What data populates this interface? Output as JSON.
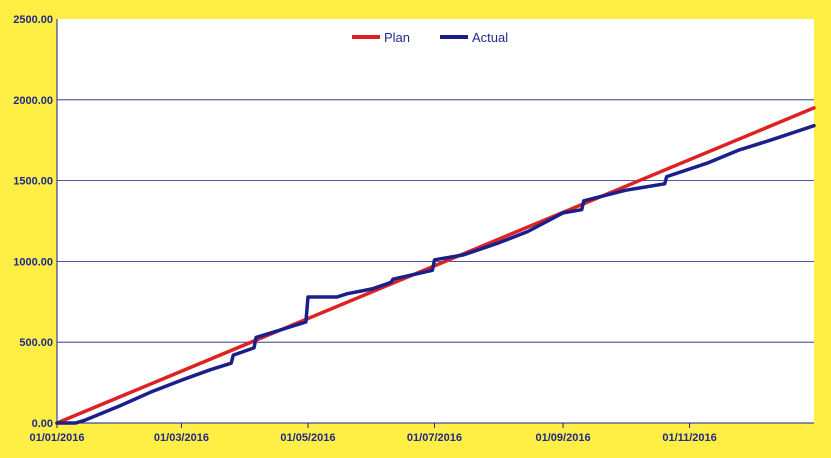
{
  "chart_data": {
    "type": "line",
    "title": "",
    "xlabel": "",
    "ylabel": "",
    "x_range": [
      "2016-01-01",
      "2016-12-31"
    ],
    "ylim": [
      0,
      2500
    ],
    "grid": {
      "horizontal": true,
      "vertical": false
    },
    "legend_position": "top-center",
    "y_ticks": [
      "0.00",
      "500.00",
      "1000.00",
      "1500.00",
      "2000.00",
      "2500.00"
    ],
    "x_ticks": [
      {
        "date": "2016-01-01",
        "label": "01/01/2016"
      },
      {
        "date": "2016-03-01",
        "label": "01/03/2016"
      },
      {
        "date": "2016-05-01",
        "label": "01/05/2016"
      },
      {
        "date": "2016-07-01",
        "label": "01/07/2016"
      },
      {
        "date": "2016-09-01",
        "label": "01/09/2016"
      },
      {
        "date": "2016-11-01",
        "label": "01/11/2016"
      }
    ],
    "series": [
      {
        "name": "Plan",
        "color": "#dd2222",
        "points": [
          {
            "x": "2016-01-01",
            "y": 0
          },
          {
            "x": "2016-12-31",
            "y": 1950
          }
        ]
      },
      {
        "name": "Actual",
        "color": "#1a1f8c",
        "points": [
          {
            "x": "2016-01-01",
            "y": 0
          },
          {
            "x": "2016-01-10",
            "y": 0
          },
          {
            "x": "2016-01-15",
            "y": 20
          },
          {
            "x": "2016-02-01",
            "y": 110
          },
          {
            "x": "2016-02-15",
            "y": 190
          },
          {
            "x": "2016-03-01",
            "y": 265
          },
          {
            "x": "2016-03-15",
            "y": 330
          },
          {
            "x": "2016-03-25",
            "y": 370
          },
          {
            "x": "2016-03-26",
            "y": 420
          },
          {
            "x": "2016-04-05",
            "y": 465
          },
          {
            "x": "2016-04-06",
            "y": 530
          },
          {
            "x": "2016-04-20",
            "y": 585
          },
          {
            "x": "2016-04-30",
            "y": 625
          },
          {
            "x": "2016-05-01",
            "y": 780
          },
          {
            "x": "2016-05-15",
            "y": 780
          },
          {
            "x": "2016-05-20",
            "y": 800
          },
          {
            "x": "2016-06-01",
            "y": 830
          },
          {
            "x": "2016-06-10",
            "y": 870
          },
          {
            "x": "2016-06-11",
            "y": 890
          },
          {
            "x": "2016-06-30",
            "y": 945
          },
          {
            "x": "2016-07-01",
            "y": 1010
          },
          {
            "x": "2016-07-15",
            "y": 1040
          },
          {
            "x": "2016-08-01",
            "y": 1115
          },
          {
            "x": "2016-08-15",
            "y": 1185
          },
          {
            "x": "2016-09-01",
            "y": 1300
          },
          {
            "x": "2016-09-10",
            "y": 1320
          },
          {
            "x": "2016-09-11",
            "y": 1375
          },
          {
            "x": "2016-10-01",
            "y": 1440
          },
          {
            "x": "2016-10-20",
            "y": 1480
          },
          {
            "x": "2016-10-21",
            "y": 1525
          },
          {
            "x": "2016-11-10",
            "y": 1610
          },
          {
            "x": "2016-11-25",
            "y": 1690
          },
          {
            "x": "2016-12-10",
            "y": 1750
          },
          {
            "x": "2016-12-31",
            "y": 1840
          }
        ]
      }
    ]
  }
}
